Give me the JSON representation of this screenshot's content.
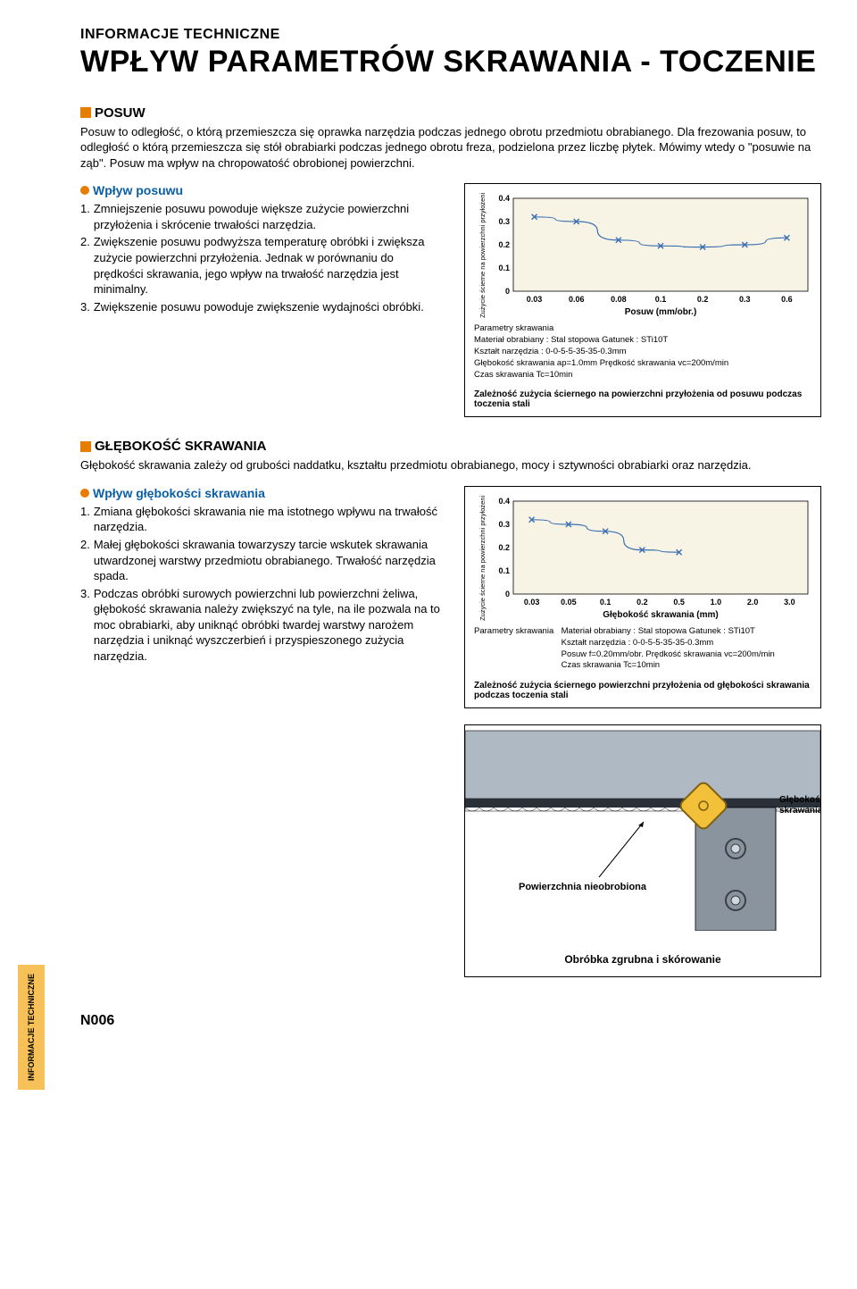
{
  "header": "INFORMACJE TECHNICZNE",
  "title": "WPŁYW PARAMETRÓW SKRAWANIA - TOCZENIE",
  "side_tab": "INFORMACJE TECHNICZNE",
  "page_number": "N006",
  "section_posuw": {
    "heading": "POSUW",
    "intro": "Posuw to odległość, o którą przemieszcza się oprawka narzędzia podczas jednego obrotu przedmiotu obrabianego. Dla frezowania posuw, to odległość o którą przemieszcza się stół obrabiarki podczas jednego obrotu freza, podzielona przez liczbę płytek. Mówimy wtedy o \"posuwie na ząb\". Posuw ma wpływ na chropowatość obrobionej powierzchni.",
    "sub_heading": "Wpływ posuwu",
    "items": [
      {
        "n": "1.",
        "t": "Zmniejszenie posuwu powoduje większe zużycie powierzchni przyłożenia i skrócenie trwałości narzędzia."
      },
      {
        "n": "2.",
        "t": "Zwiększenie posuwu podwyższa temperaturę obróbki i zwiększa zużycie powierzchni przyłożenia. Jednak w porównaniu do prędkości skrawania, jego wpływ na trwałość narzędzia jest minimalny."
      },
      {
        "n": "3.",
        "t": "Zwiększenie posuwu powoduje zwiększenie wydajności obróbki."
      }
    ]
  },
  "chart1": {
    "ylabel": "Zużycie ścierne na powierzchni przyłożenia (mm)",
    "xlabel": "Posuw (mm/obr.)",
    "yticks": [
      "0",
      "0.1",
      "0.2",
      "0.3",
      "0.4"
    ],
    "xticks": [
      "0.03",
      "0.06",
      "0.08",
      "0.1",
      "0.2",
      "0.3",
      "0.6"
    ],
    "plot_bg": "#f7f3e5",
    "line_color": "#3a6fb0",
    "marker_color": "#3a6fb0",
    "points": [
      {
        "x": 0.03,
        "y": 0.32
      },
      {
        "x": 0.06,
        "y": 0.3
      },
      {
        "x": 0.08,
        "y": 0.22
      },
      {
        "x": 0.1,
        "y": 0.195
      },
      {
        "x": 0.2,
        "y": 0.19
      },
      {
        "x": 0.3,
        "y": 0.2
      },
      {
        "x": 0.6,
        "y": 0.23
      }
    ],
    "xmap": {
      "0.03": 0,
      "0.06": 1,
      "0.08": 2,
      "0.1": 3,
      "0.2": 4,
      "0.3": 5,
      "0.6": 6
    },
    "ylim": [
      0,
      0.4
    ],
    "params_label": "Parametry skrawania",
    "params_lines": [
      "Materiał obrabiany : Stal stopowa   Gatunek : STi10T",
      "Kształt narzędzia : 0-0-5-5-35-35-0.3mm",
      "Głębokość skrawania  ap=1.0mm    Prędkość skrawania  vc=200m/min",
      "Czas skrawania  Tc=10min"
    ],
    "caption": "Zależność zużycia ściernego na powierzchni przyłożenia od posuwu podczas toczenia stali"
  },
  "section_depth": {
    "heading": "GŁĘBOKOŚĆ SKRAWANIA",
    "intro": "Głębokość skrawania zależy od grubości naddatku, kształtu przedmiotu obrabianego, mocy i sztywności obrabiarki oraz narzędzia.",
    "sub_heading": "Wpływ głębokości skrawania",
    "items": [
      {
        "n": "1.",
        "t": "Zmiana głębokości skrawania nie ma istotnego wpływu na trwałość narzędzia."
      },
      {
        "n": "2.",
        "t": "Małej głębokości skrawania towarzyszy tarcie wskutek skrawania utwardzonej warstwy przedmiotu obrabianego. Trwałość narzędzia spada."
      },
      {
        "n": "3.",
        "t": "Podczas obróbki surowych powierzchni lub powierzchni żeliwa, głębokość skrawania należy zwiększyć na tyle, na ile pozwala na to moc obrabiarki, aby uniknąć obróbki twardej warstwy narożem narzędzia i uniknąć wyszczerbień i przyspieszonego zużycia narzędzia."
      }
    ]
  },
  "chart2": {
    "ylabel": "Zużycie ścierne na powierzchni przyłożenia (mm)",
    "xlabel": "Głębokość skrawania (mm)",
    "yticks": [
      "0",
      "0.1",
      "0.2",
      "0.3",
      "0.4"
    ],
    "xticks": [
      "0.03",
      "0.05",
      "0.1",
      "0.2",
      "0.5",
      "1.0",
      "2.0",
      "3.0"
    ],
    "plot_bg": "#f7f3e5",
    "line_color": "#3a6fb0",
    "marker_color": "#3a6fb0",
    "points": [
      {
        "x": 0.03,
        "y": 0.32
      },
      {
        "x": 0.05,
        "y": 0.3
      },
      {
        "x": 0.1,
        "y": 0.27
      },
      {
        "x": 0.2,
        "y": 0.19
      },
      {
        "x": 0.5,
        "y": 0.18
      },
      {
        "x": 1.0,
        "y": 0.175
      },
      {
        "x": 2.0,
        "y": 0.175
      },
      {
        "x": 3.0,
        "y": 0.21
      }
    ],
    "xmap": {
      "0.03": 0,
      "0.05": 1,
      "0.1": 2,
      "0.2": 3,
      "0.5": 4,
      "1.0": 5,
      "2.0": 6,
      "3.0": 7
    },
    "ylim": [
      0,
      0.4
    ],
    "params_label": "Parametry skrawania",
    "params_lines": [
      "Materiał obrabiany : Stal stopowa   Gatunek : STi10T",
      "Kształt narzędzia : 0-0-5-5-35-35-0.3mm",
      "Posuw  f=0.20mm/obr.          Prędkość skrawania  vc=200m/min",
      "Czas skrawania  Tc=10min"
    ],
    "caption": "Zależność zużycia ściernego powierzchni przyłożenia od głębokości skrawania podczas toczenia stali"
  },
  "illustration": {
    "label_surface": "Powierzchnia nieobrobiona",
    "label_depth": "Głębokość skrawania",
    "caption": "Obróbka zgrubna i skórowanie",
    "colors": {
      "workpiece": "#aeb9c4",
      "holder": "#8a949e",
      "insert_fill": "#f3c03a",
      "insert_stroke": "#806010",
      "screw": "#cfd6dc"
    }
  }
}
